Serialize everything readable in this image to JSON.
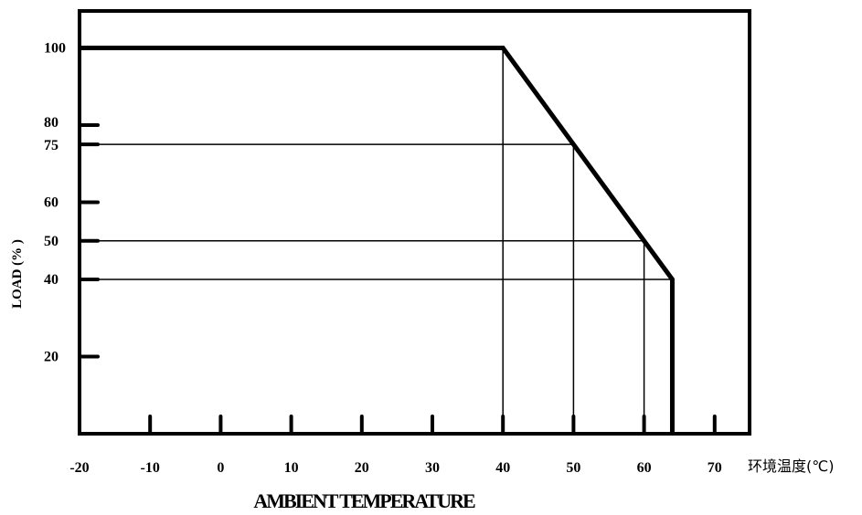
{
  "chart_data": {
    "type": "line",
    "xlabel": "AMBIENT TEMPERATURE",
    "x_unit_label": "环境温度(℃)",
    "ylabel": "LOAD (% )",
    "x_ticks": [
      -20,
      -10,
      0,
      10,
      20,
      30,
      40,
      50,
      60,
      70
    ],
    "y_ticks": [
      100,
      80,
      75,
      60,
      50,
      40,
      20
    ],
    "xlim": [
      -20,
      75
    ],
    "ylim": [
      0,
      110
    ],
    "series": [
      {
        "x": [
          -20,
          40,
          50,
          60,
          64,
          64
        ],
        "y": [
          100,
          100,
          75,
          50,
          40,
          0
        ]
      }
    ],
    "reference_points": [
      {
        "x": 40,
        "y": 100
      },
      {
        "x": 50,
        "y": 75
      },
      {
        "x": 60,
        "y": 50
      },
      {
        "x": 64,
        "y": 40
      }
    ],
    "grid": false
  }
}
